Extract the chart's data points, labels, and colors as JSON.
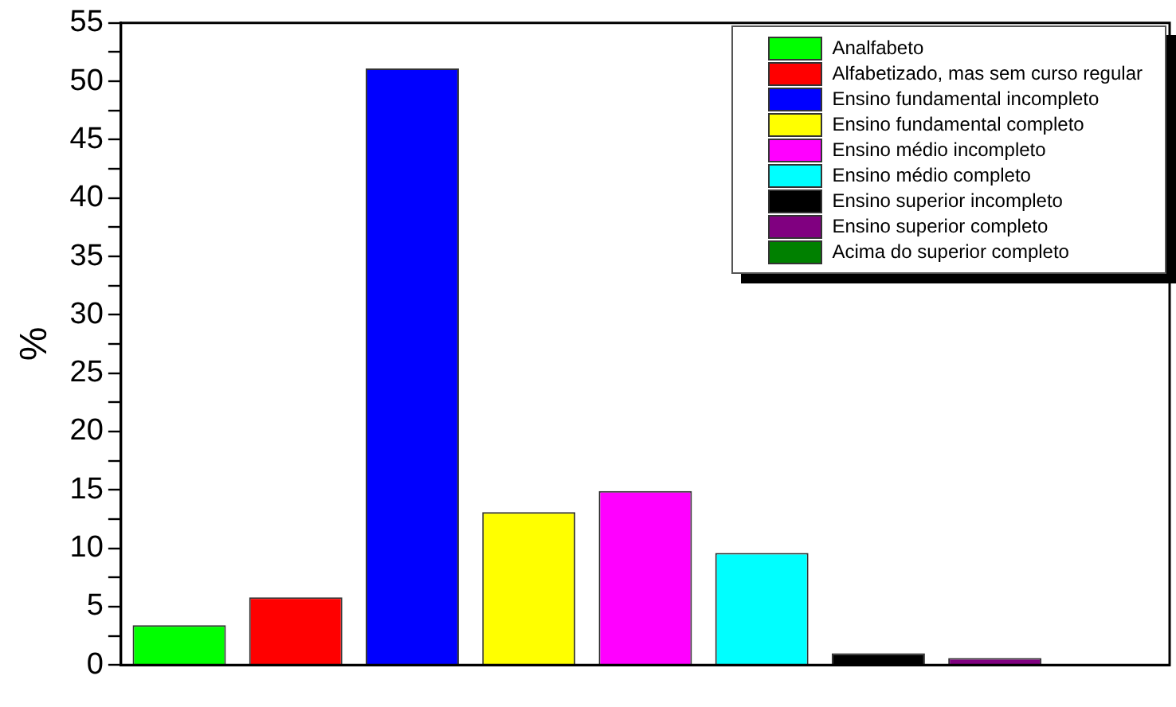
{
  "chart_data": {
    "type": "bar",
    "ylabel": "%",
    "categories": [
      null,
      null,
      null,
      null,
      null,
      null,
      null,
      null,
      null
    ],
    "series": [
      {
        "name": "Analfabeto",
        "color": "#00ff00",
        "values": [
          3.4,
          null,
          null,
          null,
          null,
          null,
          null,
          null,
          null
        ]
      },
      {
        "name": "Alfabetizado, mas sem curso regular",
        "color": "#ff0000",
        "values": [
          null,
          5.8,
          null,
          null,
          null,
          null,
          null,
          null,
          null
        ]
      },
      {
        "name": "Ensino fundamental incompleto",
        "color": "#0000ff",
        "values": [
          null,
          null,
          51.1,
          null,
          null,
          null,
          null,
          null,
          null
        ]
      },
      {
        "name": "Ensino fundamental completo",
        "color": "#ffff00",
        "values": [
          null,
          null,
          null,
          13.1,
          null,
          null,
          null,
          null,
          null
        ]
      },
      {
        "name": "Ensino médio incompleto",
        "color": "#ff00ff",
        "values": [
          null,
          null,
          null,
          null,
          14.9,
          null,
          null,
          null,
          null
        ]
      },
      {
        "name": "Ensino médio completo",
        "color": "#00ffff",
        "values": [
          null,
          null,
          null,
          null,
          null,
          9.6,
          null,
          null,
          null
        ]
      },
      {
        "name": "Ensino superior incompleto",
        "color": "#000000",
        "values": [
          null,
          null,
          null,
          null,
          null,
          null,
          1.0,
          null,
          null
        ]
      },
      {
        "name": "Ensino superior completo",
        "color": "#800080",
        "values": [
          null,
          null,
          null,
          null,
          null,
          null,
          null,
          0.6,
          null
        ]
      },
      {
        "name": "Acima do superior completo",
        "color": "#008000",
        "values": [
          null,
          null,
          null,
          null,
          null,
          null,
          null,
          null,
          0
        ]
      }
    ],
    "ylim": [
      0,
      55
    ],
    "yticks": [
      0,
      {
        "value": 2.5,
        "label": null
      },
      5,
      {
        "value": 7.5,
        "label": null
      },
      10,
      {
        "value": 12.5,
        "label": null
      },
      15,
      {
        "value": 17.5,
        "label": null
      },
      20,
      {
        "value": 22.5,
        "label": null
      },
      25,
      {
        "value": 27.5,
        "label": null
      },
      30,
      {
        "value": 32.5,
        "label": null
      },
      35,
      {
        "value": 37.5,
        "label": null
      },
      40,
      {
        "value": 42.5,
        "label": null
      },
      45,
      {
        "value": 47.5,
        "label": null
      },
      50,
      {
        "value": 52.5,
        "label": null
      },
      55
    ],
    "grid": false,
    "legend": "top right"
  }
}
